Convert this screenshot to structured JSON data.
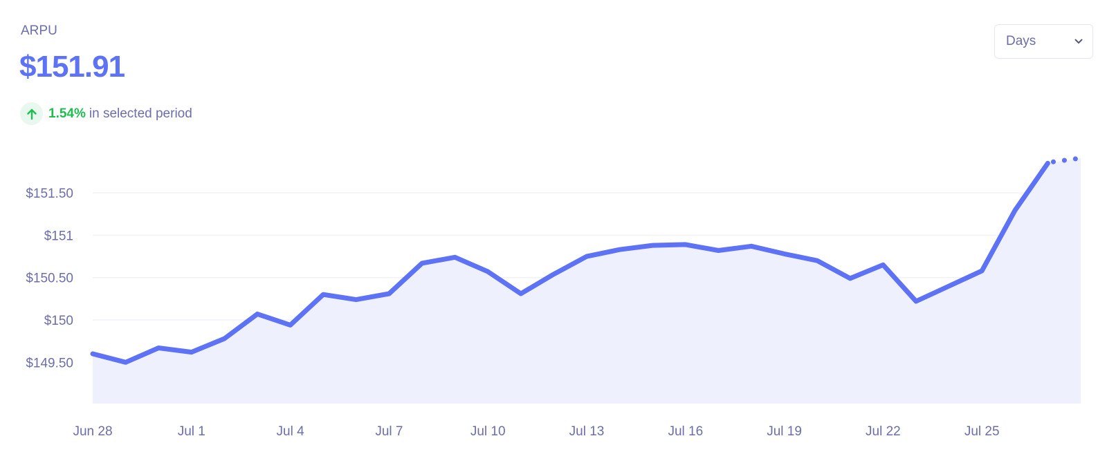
{
  "header": {
    "metric_label": "ARPU",
    "metric_value": "$151.91",
    "change_percent": "1.54%",
    "change_text": "in selected period",
    "change_icon": "arrow-up-icon"
  },
  "controls": {
    "period_select": {
      "selected": "Days",
      "icon": "chevron-down-icon"
    }
  },
  "colors": {
    "accent": "#5e72f6",
    "fill": "#eef1fd",
    "positive": "#1cbf4f",
    "positive_bg": "#e8f8ee",
    "text_muted": "#6b6ea8",
    "gridline": "#f1f2f8"
  },
  "chart_data": {
    "type": "area",
    "title": "ARPU",
    "xlabel": "",
    "ylabel": "",
    "x": [
      "Jun 28",
      "Jun 29",
      "Jun 30",
      "Jul 1",
      "Jul 2",
      "Jul 3",
      "Jul 4",
      "Jul 5",
      "Jul 6",
      "Jul 7",
      "Jul 8",
      "Jul 9",
      "Jul 10",
      "Jul 11",
      "Jul 12",
      "Jul 13",
      "Jul 14",
      "Jul 15",
      "Jul 16",
      "Jul 17",
      "Jul 18",
      "Jul 19",
      "Jul 20",
      "Jul 21",
      "Jul 22",
      "Jul 23",
      "Jul 24",
      "Jul 25",
      "Jul 26",
      "Jul 27",
      "Jul 28"
    ],
    "series": [
      {
        "name": "ARPU",
        "values": [
          149.6,
          149.5,
          149.67,
          149.62,
          149.78,
          150.07,
          149.94,
          150.3,
          150.24,
          150.31,
          150.67,
          150.74,
          150.57,
          150.31,
          150.54,
          150.75,
          150.83,
          150.88,
          150.89,
          150.82,
          150.87,
          150.78,
          150.7,
          150.49,
          150.65,
          150.22,
          150.4,
          150.58,
          151.29,
          151.85,
          151.91
        ],
        "incomplete_last_segment": true
      }
    ],
    "x_tick_labels": [
      "Jun 28",
      "Jul 1",
      "Jul 4",
      "Jul 7",
      "Jul 10",
      "Jul 13",
      "Jul 16",
      "Jul 19",
      "Jul 22",
      "Jul 25"
    ],
    "y_ticks": [
      149.5,
      150,
      150.5,
      151,
      151.5
    ],
    "y_tick_labels": [
      "$149.50",
      "$150",
      "$150.50",
      "$151",
      "$151.50"
    ],
    "ylim": [
      149.0,
      152.0
    ],
    "grid": true,
    "legend": "none"
  }
}
